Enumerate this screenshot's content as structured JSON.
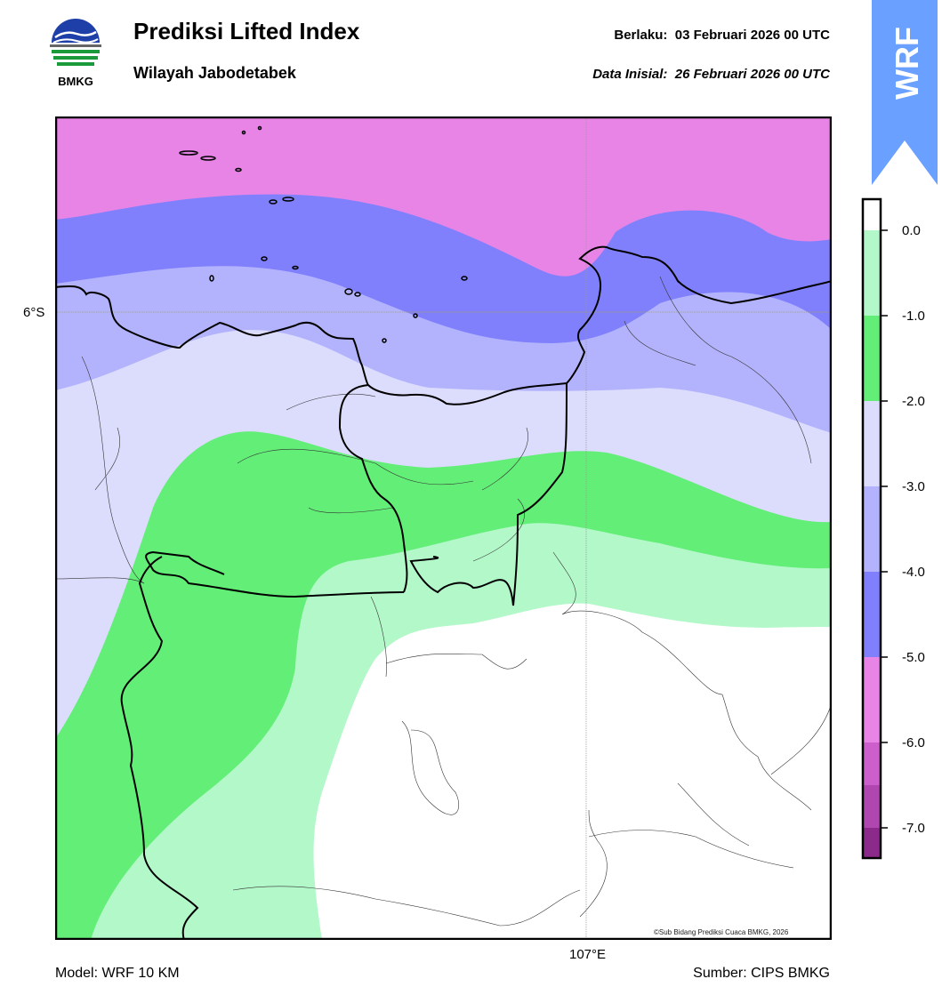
{
  "header": {
    "title": "Prediksi Lifted Index",
    "subtitle": "Wilayah Jabodetabek",
    "valid_label": "Berlaku:",
    "valid_value": "03 Februari 2026 00 UTC",
    "init_label": "Data Inisial:",
    "init_value": "26 Februari 2026 00 UTC"
  },
  "logo": {
    "text": "BMKG",
    "icon": "bmkg-logo-icon"
  },
  "banner": {
    "text": "WRF",
    "color": "#6aa0ff"
  },
  "map": {
    "lat_label": "6°S",
    "lon_label": "107°E",
    "copyright": "©Sub Bidang Prediksi Cuaca BMKG, 2026"
  },
  "colorbar": {
    "labels": [
      "0.0",
      "-1.0",
      "-2.0",
      "-3.0",
      "-4.0",
      "-5.0",
      "-6.0",
      "-7.0"
    ],
    "colors": [
      "#ffffff",
      "#b3f8c9",
      "#63ee78",
      "#dcdcfd",
      "#b3b3fd",
      "#8080fd",
      "#e784e6",
      "#cd5fcc",
      "#b046b0",
      "#8c2a8c"
    ]
  },
  "footer": {
    "model": "Model: WRF 10 KM",
    "source": "Sumber: CIPS BMKG"
  }
}
